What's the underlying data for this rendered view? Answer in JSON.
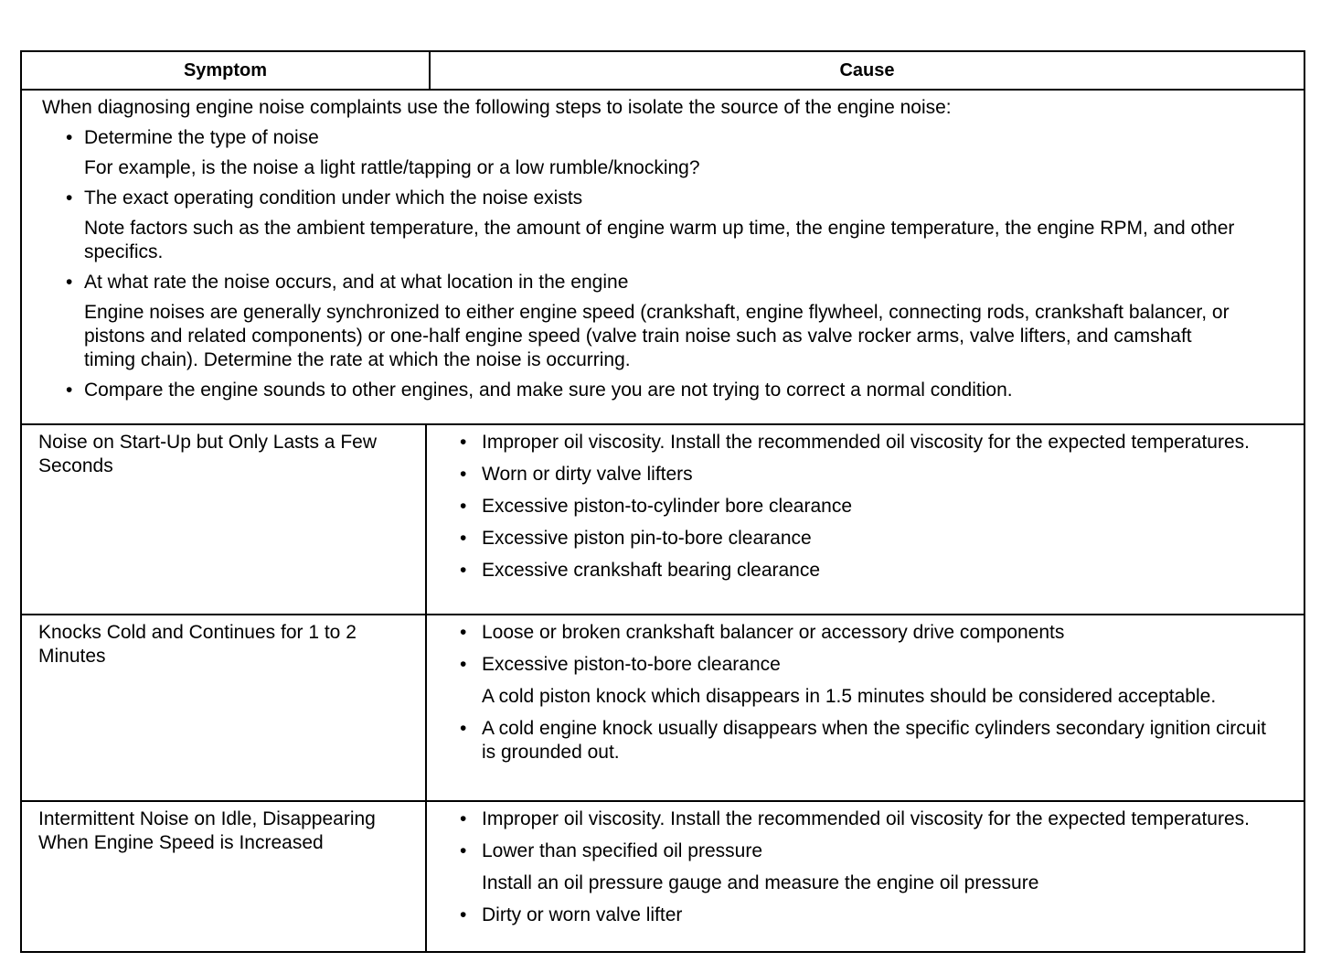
{
  "header": {
    "symptom": "Symptom",
    "cause": "Cause"
  },
  "intro": {
    "lead": "When diagnosing engine noise complaints use the following steps to isolate the source of the engine noise:",
    "steps": [
      {
        "title": "Determine the type of noise",
        "detail": "For example, is the noise a light rattle/tapping or a low rumble/knocking?"
      },
      {
        "title": "The exact operating condition under which the noise exists",
        "detail": "Note factors such as the ambient temperature, the amount of engine warm up time, the engine temperature, the engine RPM, and other specifics."
      },
      {
        "title": "At what rate the noise occurs, and at what location in the engine",
        "detail": "Engine noises are generally synchronized to either engine speed (crankshaft, engine flywheel, connecting rods, crankshaft balancer, or pistons and related components) or one-half engine speed (valve train noise such as valve rocker arms, valve lifters, and camshaft timing chain). Determine the rate at which the noise is occurring."
      },
      {
        "title": "Compare the engine sounds to other engines, and make sure you are not trying to correct a normal condition.",
        "detail": ""
      }
    ]
  },
  "rows": [
    {
      "symptom": "Noise on Start-Up but Only Lasts a Few Seconds",
      "causes": [
        {
          "text": "Improper oil viscosity. Install the recommended oil viscosity for the expected temperatures.",
          "note": ""
        },
        {
          "text": "Worn or dirty valve lifters",
          "note": ""
        },
        {
          "text": "Excessive piston-to-cylinder bore clearance",
          "note": ""
        },
        {
          "text": "Excessive piston pin-to-bore clearance",
          "note": ""
        },
        {
          "text": "Excessive crankshaft bearing clearance",
          "note": ""
        }
      ]
    },
    {
      "symptom": "Knocks Cold and Continues for 1 to 2 Minutes",
      "causes": [
        {
          "text": "Loose or broken crankshaft balancer or accessory drive components",
          "note": ""
        },
        {
          "text": "Excessive piston-to-bore clearance",
          "note": "A cold piston knock which disappears in 1.5 minutes should be considered acceptable."
        },
        {
          "text": "A cold engine knock usually disappears when the specific cylinders secondary ignition circuit is grounded out.",
          "note": ""
        }
      ]
    },
    {
      "symptom": "Intermittent Noise on Idle, Disappearing When Engine Speed is Increased",
      "causes": [
        {
          "text": "Improper oil viscosity. Install the recommended oil viscosity for the expected temperatures.",
          "note": ""
        },
        {
          "text": "Lower than specified oil pressure",
          "note": "Install an oil pressure gauge and measure the engine oil pressure"
        },
        {
          "text": "Dirty or worn valve lifter",
          "note": ""
        }
      ]
    }
  ]
}
